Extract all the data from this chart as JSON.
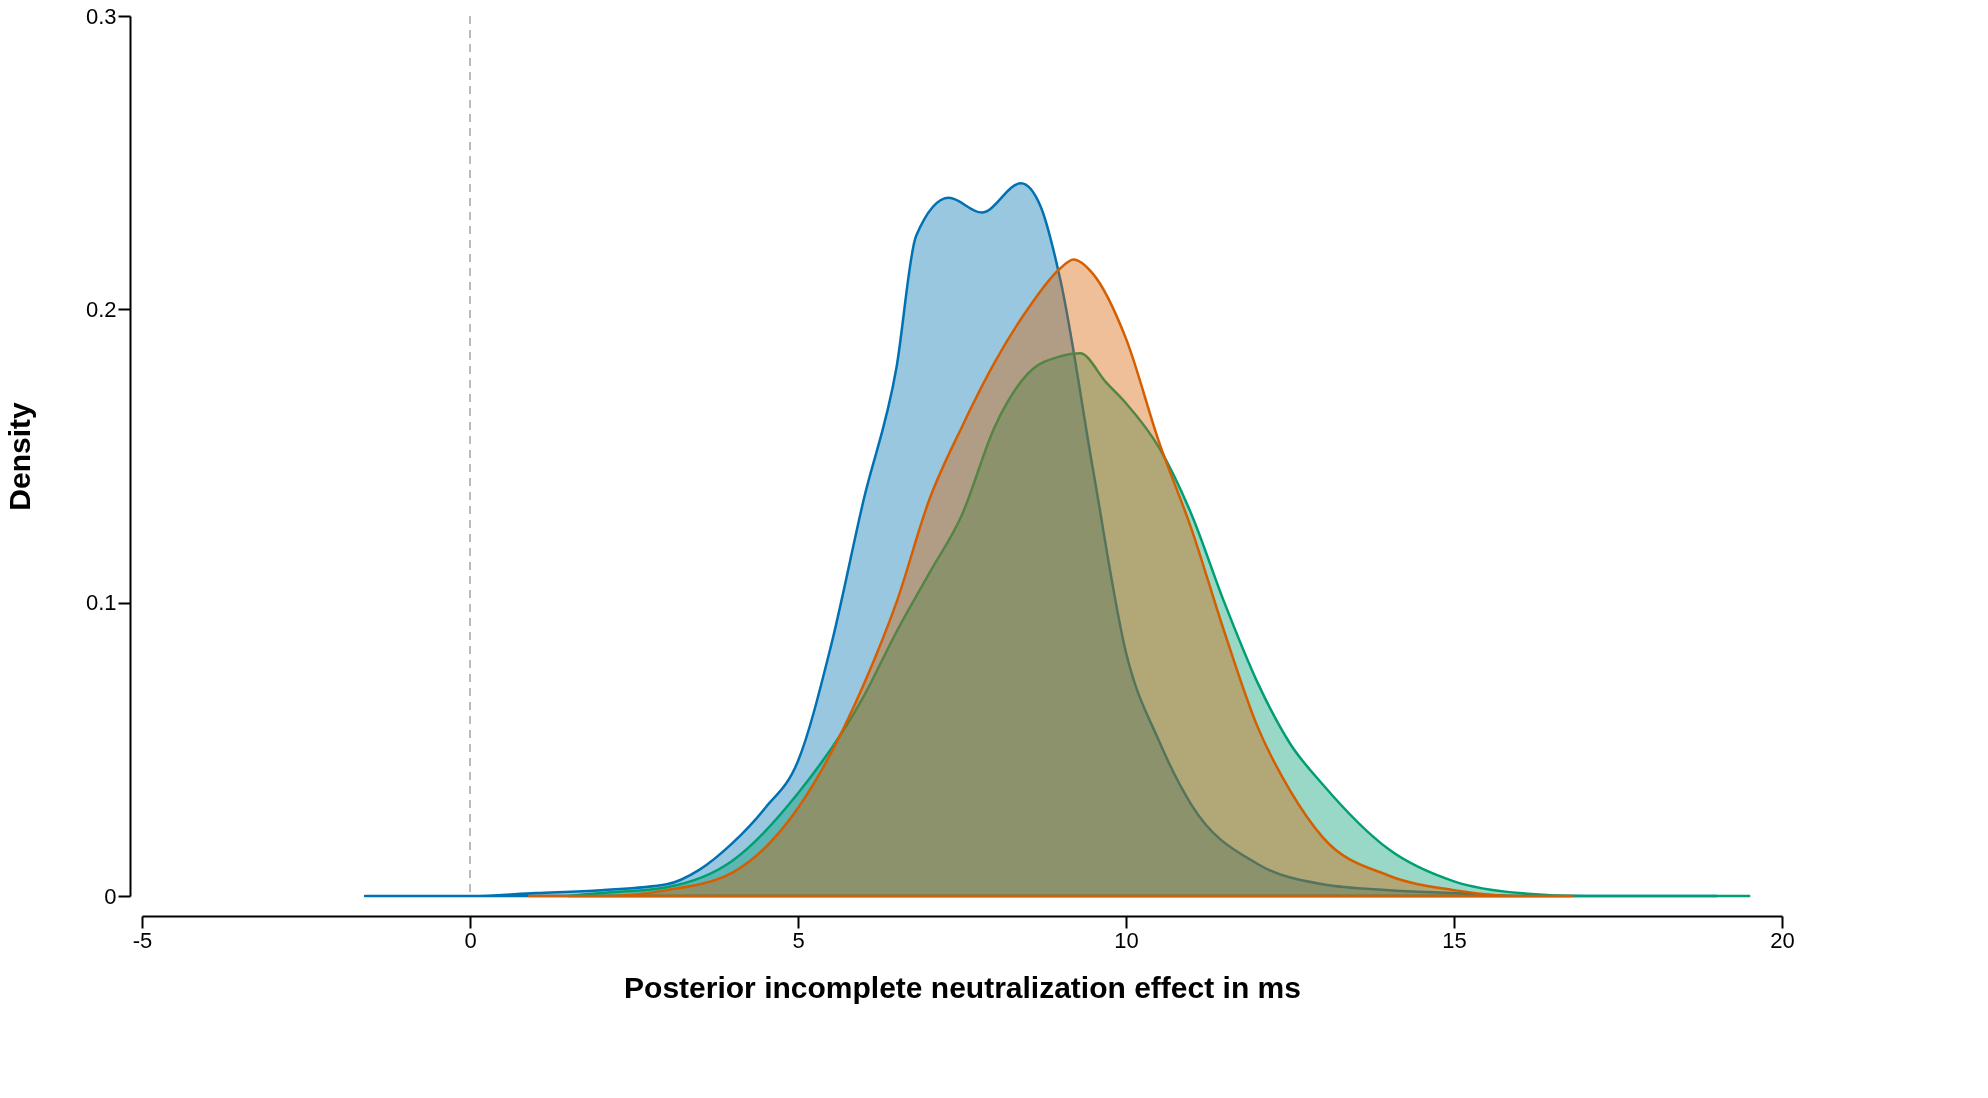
{
  "chart_data": {
    "type": "area",
    "xlabel": "Posterior incomplete neutralization effect in ms",
    "ylabel": "Density",
    "xlim": [
      -5,
      20
    ],
    "xticks": [
      -5,
      0,
      5,
      10,
      15,
      20
    ],
    "ylim": [
      0,
      0.3
    ],
    "yticks": [
      0,
      0.1,
      0.2,
      0.3
    ],
    "grid": false,
    "ref_lines": [
      {
        "axis": "x",
        "value": 0,
        "color": "#bbbbbb",
        "line_style": "dashed"
      }
    ],
    "series": [
      {
        "color": "#0072b2",
        "x": [
          -1.6,
          0,
          1,
          2,
          3,
          3.5,
          4,
          4.5,
          5,
          5.5,
          6,
          6.5,
          6.8,
          7.3,
          7.8,
          8.4,
          8.7,
          9,
          9.5,
          10,
          10.5,
          11,
          12,
          13,
          14,
          15,
          16,
          17,
          18,
          19
        ],
        "values": [
          0,
          0,
          0.001,
          0.002,
          0.004,
          0.009,
          0.018,
          0.03,
          0.046,
          0.085,
          0.135,
          0.18,
          0.225,
          0.238,
          0.233,
          0.243,
          0.235,
          0.21,
          0.145,
          0.083,
          0.053,
          0.031,
          0.011,
          0.004,
          0.002,
          0.001,
          0,
          0,
          0,
          0
        ]
      },
      {
        "color": "#009e73",
        "x": [
          1.5,
          2,
          3,
          4,
          5,
          6,
          6.5,
          7,
          7.5,
          8,
          8.5,
          9,
          9.3,
          9.7,
          10,
          10.5,
          11,
          11.5,
          12,
          12.5,
          13,
          14,
          15,
          16,
          17,
          18,
          19.5
        ],
        "values": [
          0,
          0.001,
          0.003,
          0.012,
          0.035,
          0.068,
          0.09,
          0.11,
          0.13,
          0.16,
          0.178,
          0.184,
          0.185,
          0.175,
          0.168,
          0.153,
          0.13,
          0.1,
          0.073,
          0.052,
          0.038,
          0.016,
          0.005,
          0.001,
          0,
          0,
          0
        ]
      },
      {
        "color": "#d55e00",
        "x": [
          0.9,
          2,
          3,
          4,
          5,
          6,
          6.5,
          7,
          7.5,
          8,
          8.5,
          9,
          9.2,
          9.5,
          10,
          10.5,
          11,
          11.5,
          12,
          12.5,
          13,
          14,
          15,
          16,
          16.8
        ],
        "values": [
          0,
          0,
          0.002,
          0.008,
          0.03,
          0.072,
          0.1,
          0.135,
          0.16,
          0.182,
          0.2,
          0.214,
          0.217,
          0.212,
          0.19,
          0.155,
          0.125,
          0.09,
          0.058,
          0.036,
          0.02,
          0.007,
          0.002,
          0,
          0
        ]
      }
    ]
  }
}
